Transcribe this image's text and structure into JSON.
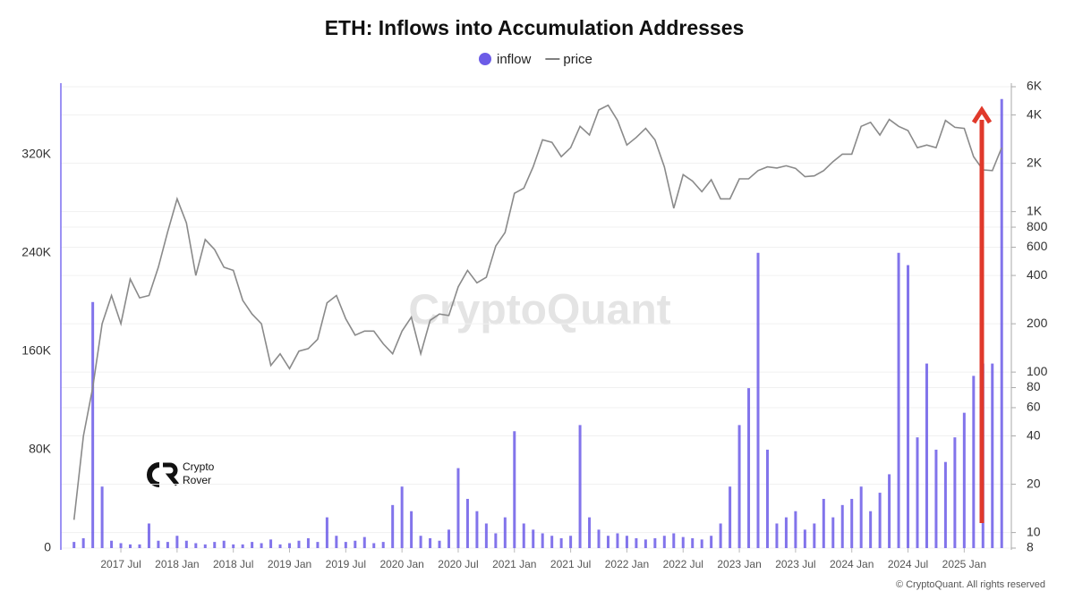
{
  "chart_data": {
    "type": "combo",
    "title": "ETH: Inflows into Accumulation Addresses",
    "watermark": "CryptoQuant",
    "logo_text": [
      "Crypto",
      "Rover"
    ],
    "copyright": "© CryptoQuant. All rights reserved",
    "x": [
      "2017-02",
      "2017-03",
      "2017-04",
      "2017-05",
      "2017-06",
      "2017-07",
      "2017-08",
      "2017-09",
      "2017-10",
      "2017-11",
      "2017-12",
      "2018-01",
      "2018-02",
      "2018-03",
      "2018-04",
      "2018-05",
      "2018-06",
      "2018-07",
      "2018-08",
      "2018-09",
      "2018-10",
      "2018-11",
      "2018-12",
      "2019-01",
      "2019-02",
      "2019-03",
      "2019-04",
      "2019-05",
      "2019-06",
      "2019-07",
      "2019-08",
      "2019-09",
      "2019-10",
      "2019-11",
      "2019-12",
      "2020-01",
      "2020-02",
      "2020-03",
      "2020-04",
      "2020-05",
      "2020-06",
      "2020-07",
      "2020-08",
      "2020-09",
      "2020-10",
      "2020-11",
      "2020-12",
      "2021-01",
      "2021-02",
      "2021-03",
      "2021-04",
      "2021-05",
      "2021-06",
      "2021-07",
      "2021-08",
      "2021-09",
      "2021-10",
      "2021-11",
      "2021-12",
      "2022-01",
      "2022-02",
      "2022-03",
      "2022-04",
      "2022-05",
      "2022-06",
      "2022-07",
      "2022-08",
      "2022-09",
      "2022-10",
      "2022-11",
      "2022-12",
      "2023-01",
      "2023-02",
      "2023-03",
      "2023-04",
      "2023-05",
      "2023-06",
      "2023-07",
      "2023-08",
      "2023-09",
      "2023-10",
      "2023-11",
      "2023-12",
      "2024-01",
      "2024-02",
      "2024-03",
      "2024-04",
      "2024-05",
      "2024-06",
      "2024-07",
      "2024-08",
      "2024-09",
      "2024-10",
      "2024-11",
      "2024-12",
      "2025-01",
      "2025-02",
      "2025-03",
      "2025-04",
      "2025-05"
    ],
    "series": [
      {
        "name": "inflow",
        "type": "bar",
        "color": "#6c5ce7",
        "values": [
          5000,
          8000,
          200000,
          50000,
          6000,
          4000,
          3000,
          3000,
          20000,
          6000,
          5000,
          10000,
          6000,
          4000,
          3000,
          5000,
          6000,
          3000,
          3000,
          5000,
          4000,
          7000,
          3000,
          4000,
          6000,
          8000,
          5000,
          25000,
          10000,
          5000,
          6000,
          9000,
          4000,
          5000,
          35000,
          50000,
          30000,
          10000,
          8000,
          6000,
          15000,
          65000,
          40000,
          30000,
          20000,
          12000,
          25000,
          95000,
          20000,
          15000,
          12000,
          10000,
          8000,
          10000,
          100000,
          25000,
          15000,
          10000,
          12000,
          10000,
          8000,
          7000,
          8000,
          10000,
          12000,
          9000,
          8000,
          7000,
          10000,
          20000,
          50000,
          100000,
          130000,
          240000,
          80000,
          20000,
          25000,
          30000,
          15000,
          20000,
          40000,
          25000,
          35000,
          40000,
          50000,
          30000,
          45000,
          60000,
          240000,
          230000,
          90000,
          150000,
          80000,
          70000,
          90000,
          110000,
          140000,
          150000,
          150000,
          365000
        ]
      },
      {
        "name": "price",
        "type": "line",
        "axis": "y2",
        "color": "#8a8a8a",
        "values": [
          12,
          40,
          80,
          200,
          300,
          200,
          380,
          290,
          300,
          450,
          750,
          1200,
          850,
          400,
          670,
          580,
          450,
          430,
          280,
          230,
          200,
          110,
          130,
          105,
          135,
          140,
          160,
          270,
          300,
          215,
          170,
          180,
          180,
          150,
          130,
          180,
          220,
          130,
          210,
          230,
          225,
          340,
          430,
          360,
          390,
          610,
          740,
          1300,
          1400,
          1900,
          2800,
          2700,
          2200,
          2500,
          3400,
          3000,
          4300,
          4600,
          3700,
          2600,
          2900,
          3300,
          2800,
          1900,
          1050,
          1700,
          1550,
          1330,
          1580,
          1200,
          1200,
          1600,
          1600,
          1800,
          1900,
          1870,
          1930,
          1860,
          1650,
          1670,
          1800,
          2050,
          2280,
          2280,
          3400,
          3600,
          3000,
          3750,
          3400,
          3200,
          2500,
          2600,
          2500,
          3700,
          3350,
          3300,
          2200,
          1820,
          1800,
          2500
        ]
      }
    ],
    "ylim": [
      0,
      375000
    ],
    "yticks": [
      0,
      {
        "value": 80000,
        "label": "80K"
      },
      {
        "value": 160000,
        "label": "160K"
      },
      {
        "value": 240000,
        "label": "240K"
      },
      {
        "value": 320000,
        "label": "320K"
      }
    ],
    "y2lim": [
      8,
      6000
    ],
    "y2log": true,
    "y2ticks": [
      8,
      10,
      20,
      40,
      60,
      80,
      100,
      200,
      400,
      600,
      800,
      {
        "value": 1000,
        "label": "1K"
      },
      {
        "value": 2000,
        "label": "2K"
      },
      {
        "value": 4000,
        "label": "4K"
      },
      {
        "value": 6000,
        "label": "6K"
      }
    ],
    "xticks": [
      {
        "value": "2017-07",
        "label": "2017 Jul"
      },
      {
        "value": "2018-01",
        "label": "2018 Jan"
      },
      {
        "value": "2018-07",
        "label": "2018 Jul"
      },
      {
        "value": "2019-01",
        "label": "2019 Jan"
      },
      {
        "value": "2019-07",
        "label": "2019 Jul"
      },
      {
        "value": "2020-01",
        "label": "2020 Jan"
      },
      {
        "value": "2020-07",
        "label": "2020 Jul"
      },
      {
        "value": "2021-01",
        "label": "2021 Jan"
      },
      {
        "value": "2021-07",
        "label": "2021 Jul"
      },
      {
        "value": "2022-01",
        "label": "2022 Jan"
      },
      {
        "value": "2022-07",
        "label": "2022 Jul"
      },
      {
        "value": "2023-01",
        "label": "2023 Jan"
      },
      {
        "value": "2023-07",
        "label": "2023 Jul"
      },
      {
        "value": "2024-01",
        "label": "2024 Jan"
      },
      {
        "value": "2024-07",
        "label": "2024 Jul"
      },
      {
        "value": "2025-01",
        "label": "2025 Jan"
      }
    ],
    "grid": true
  }
}
